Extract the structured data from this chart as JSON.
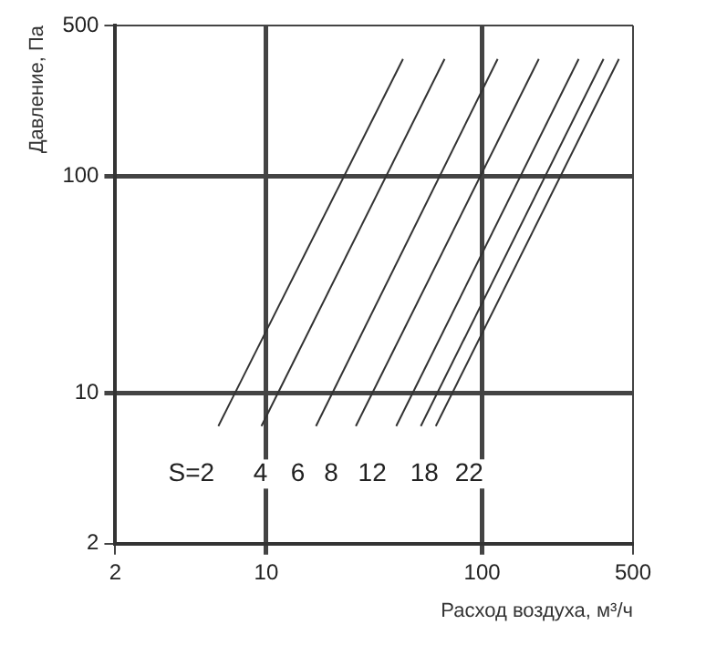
{
  "chart_data": {
    "type": "line",
    "xlabel": "Расход воздуха, м³/ч",
    "ylabel": "Давление, Па",
    "log": "xy",
    "grid": true,
    "marker": "none",
    "line_style": "solid",
    "xlim": [
      2,
      500
    ],
    "ylim": [
      2,
      500
    ],
    "xticks": [
      2,
      10,
      100,
      500
    ],
    "yticks": [
      2,
      10,
      100,
      500
    ],
    "series": [
      {
        "color": "#333333",
        "x": [
          6,
          43
        ],
        "values": [
          7,
          350
        ]
      },
      {
        "color": "#333333",
        "x": [
          9.5,
          67
        ],
        "values": [
          7,
          350
        ]
      },
      {
        "color": "#333333",
        "x": [
          17,
          118
        ],
        "values": [
          7,
          350
        ]
      },
      {
        "color": "#333333",
        "x": [
          26,
          183
        ],
        "values": [
          7,
          350
        ]
      },
      {
        "color": "#333333",
        "x": [
          40,
          280
        ],
        "values": [
          7,
          350
        ]
      },
      {
        "color": "#333333",
        "x": [
          52,
          365
        ],
        "values": [
          7,
          350
        ]
      },
      {
        "color": "#333333",
        "x": [
          61,
          430
        ],
        "values": [
          7,
          350
        ]
      }
    ],
    "annotations": [
      {
        "text": "S=2",
        "x": 4.5,
        "y": 4.2
      },
      {
        "text": "4",
        "x": 9.4,
        "y": 4.2
      },
      {
        "text": "6",
        "x": 14,
        "y": 4.2
      },
      {
        "text": "8",
        "x": 20,
        "y": 4.2
      },
      {
        "text": "12",
        "x": 31,
        "y": 4.2
      },
      {
        "text": "18",
        "x": 54,
        "y": 4.2
      },
      {
        "text": "22",
        "x": 87,
        "y": 4.2
      }
    ]
  }
}
